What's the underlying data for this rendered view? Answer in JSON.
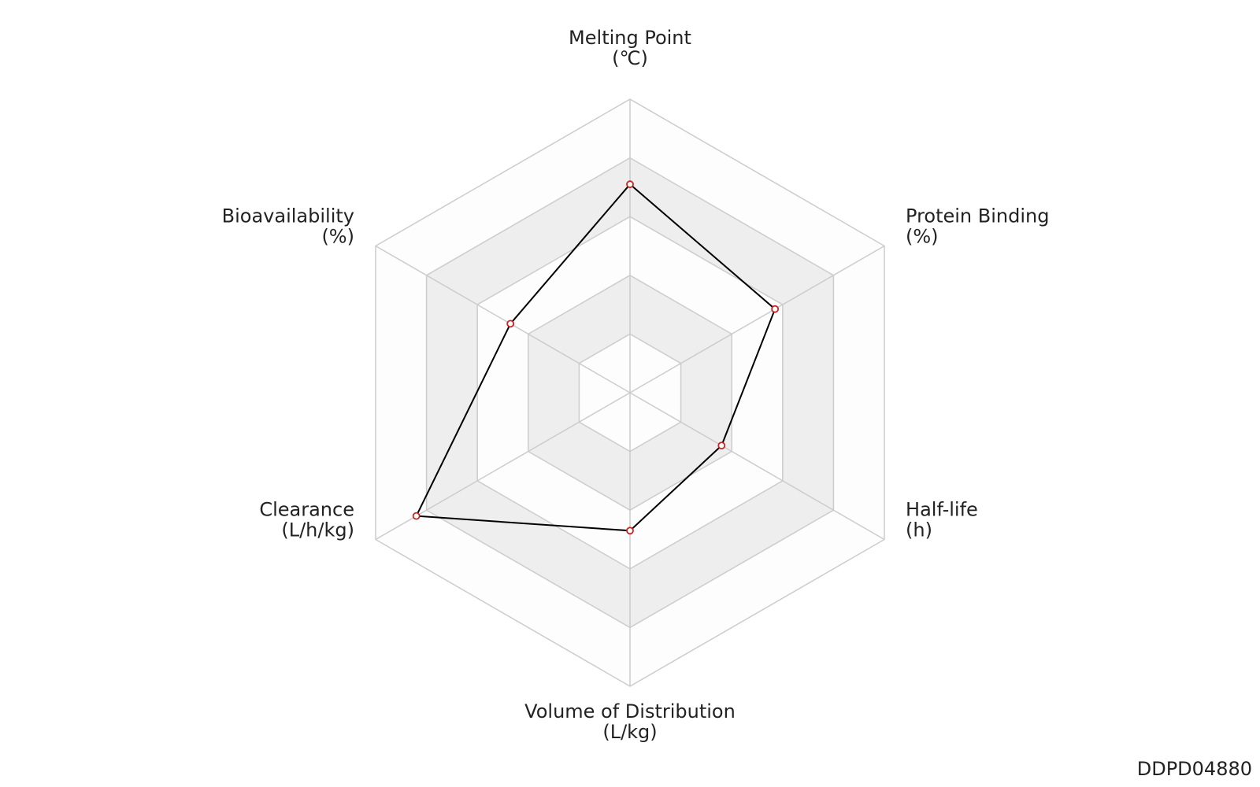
{
  "chart_data": {
    "type": "radar",
    "categories": [
      "Melting Point",
      "Protein Binding",
      "Half-life",
      "Volume of Distribution",
      "Clearance",
      "Bioavailability"
    ],
    "units": [
      "(℃)",
      "(%)",
      "(h)",
      "(L/kg)",
      "(L/h/kg)",
      "(%)"
    ],
    "series": [
      {
        "color": "#000000",
        "marker_color": "#cc2222",
        "values": [
          0.71,
          0.57,
          0.36,
          0.47,
          0.84,
          0.47
        ]
      }
    ],
    "rlim": [
      0,
      1
    ],
    "rticks": [
      0.2,
      0.4,
      0.6,
      0.8,
      1
    ],
    "grid": true
  },
  "watermark": "DDPD04880"
}
